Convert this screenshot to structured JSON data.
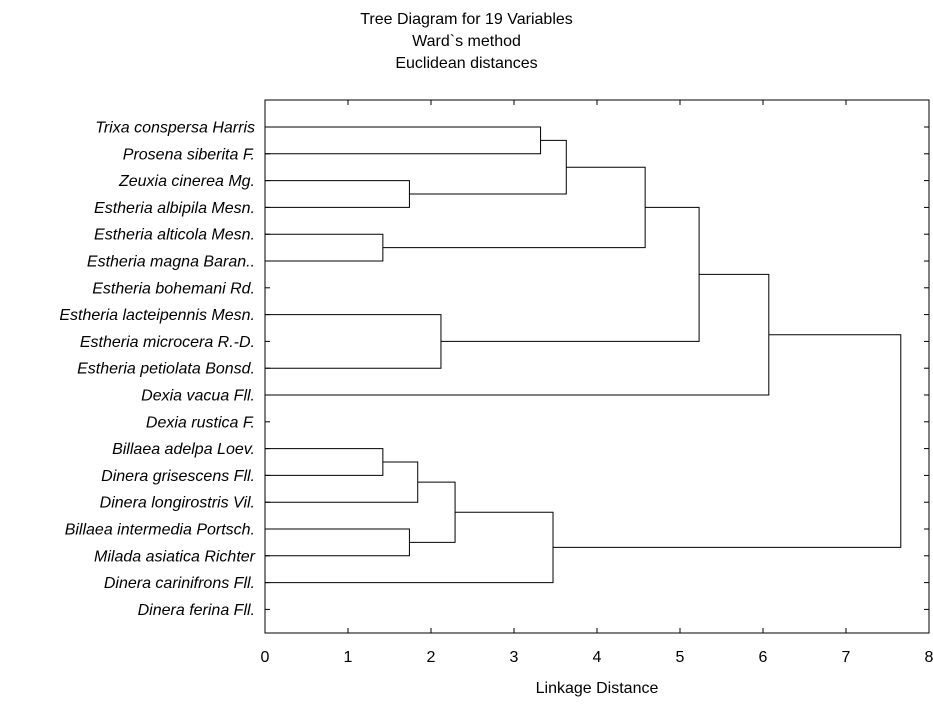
{
  "chart_data": {
    "type": "dendrogram",
    "title_lines": [
      "Tree Diagram for 19  Variables",
      "Ward`s method",
      "Euclidean distances"
    ],
    "xlabel": "Linkage Distance",
    "xlim": [
      0,
      8
    ],
    "xticks": [
      0,
      1,
      2,
      3,
      4,
      5,
      6,
      7,
      8
    ],
    "leaves": [
      "Trixa conspersa Harris",
      "Prosena siberita F.",
      "Zeuxia cinerea Mg.",
      "Estheria albipila Mesn.",
      "Estheria alticola Mesn.",
      "Estheria magna Baran..",
      "Estheria bohemani Rd.",
      "Estheria lacteipennis Mesn.",
      "Estheria microcera R.-D.",
      "Estheria petiolata Bonsd.",
      "Dexia vacua Fll.",
      "Dexia rustica F.",
      "Billaea adelpa Loev.",
      "Dinera grisescens Fll.",
      "Dinera longirostris Vil.",
      "Billaea intermedia Portsch.",
      "Milada asiatica Richter",
      "Dinera carinifrons Fll.",
      "Dinera ferina Fll."
    ],
    "merges": [
      {
        "id": "m1",
        "a": "L0",
        "b": "L1",
        "height": 3.32
      },
      {
        "id": "m2",
        "a": "L2",
        "b": "L3",
        "height": 1.74
      },
      {
        "id": "m3",
        "a": "m1",
        "b": "m2",
        "height": 3.63
      },
      {
        "id": "m4",
        "a": "L4",
        "b": "L5",
        "height": 1.42
      },
      {
        "id": "m5",
        "a": "m3",
        "b": "m4",
        "height": 4.58
      },
      {
        "id": "m6",
        "a": "L7",
        "b": "L9",
        "height": 2.12
      },
      {
        "id": "m7",
        "a": "m5",
        "b": "m6",
        "height": 5.23
      },
      {
        "id": "m8",
        "a": "m7",
        "b": "L10",
        "height": 6.07
      },
      {
        "id": "m9",
        "a": "L12",
        "b": "L13",
        "height": 1.42
      },
      {
        "id": "m10",
        "a": "m9",
        "b": "L14",
        "height": 1.84
      },
      {
        "id": "m11",
        "a": "L15",
        "b": "L16",
        "height": 1.74
      },
      {
        "id": "m12",
        "a": "m10",
        "b": "m11",
        "height": 2.29
      },
      {
        "id": "m13",
        "a": "m12",
        "b": "L17",
        "height": 3.47
      },
      {
        "id": "m14",
        "a": "m8",
        "b": "m13",
        "height": 7.66
      }
    ]
  }
}
